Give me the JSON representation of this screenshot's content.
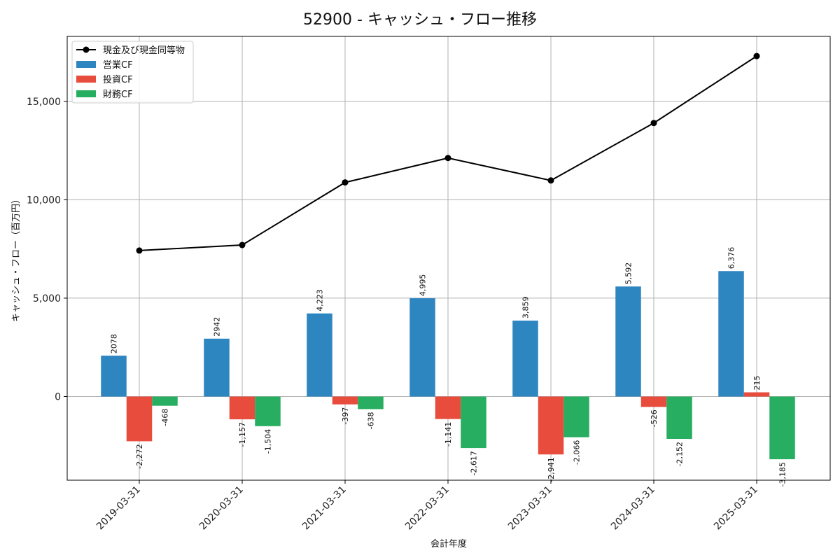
{
  "chart_data": {
    "type": "bar",
    "title": "52900 - キャッシュ・フロー推移",
    "xlabel": "会計年度",
    "ylabel": "キャッシュ・フロー（百万円）",
    "categories": [
      "2019-03-31",
      "2020-03-31",
      "2021-03-31",
      "2022-03-31",
      "2023-03-31",
      "2024-03-31",
      "2025-03-31"
    ],
    "ylim": [
      -4250,
      18300
    ],
    "yticks": [
      0,
      5000,
      10000,
      15000
    ],
    "ytick_labels": [
      "0",
      "5,000",
      "10,000",
      "15,000"
    ],
    "grid": true,
    "legend_position": "top-left",
    "series": [
      {
        "name": "営業CF",
        "kind": "bar",
        "color": "#2e86c1",
        "values": [
          2078,
          2942,
          4223,
          4995,
          3859,
          5592,
          6376
        ],
        "labels": [
          "2078",
          "2942",
          "4,223",
          "4,995",
          "3,859",
          "5,592",
          "6,376"
        ]
      },
      {
        "name": "投資CF",
        "kind": "bar",
        "color": "#e74c3c",
        "values": [
          -2272,
          -1157,
          -397,
          -1141,
          -2941,
          -526,
          215
        ],
        "labels": [
          "-2,272",
          "-1,157",
          "-397",
          "-1,141",
          "-2,941",
          "-526",
          "215"
        ]
      },
      {
        "name": "財務CF",
        "kind": "bar",
        "color": "#27ae60",
        "values": [
          -468,
          -1504,
          -638,
          -2617,
          -2066,
          -2152,
          -3185
        ],
        "labels": [
          "-468",
          "-1,504",
          "-638",
          "-2,617",
          "-2,066",
          "-2,152",
          "-3,185"
        ]
      },
      {
        "name": "現金及び現金同等物",
        "kind": "line",
        "color": "#000000",
        "values": [
          7420,
          7700,
          10880,
          12120,
          10980,
          13900,
          17300
        ]
      }
    ]
  }
}
